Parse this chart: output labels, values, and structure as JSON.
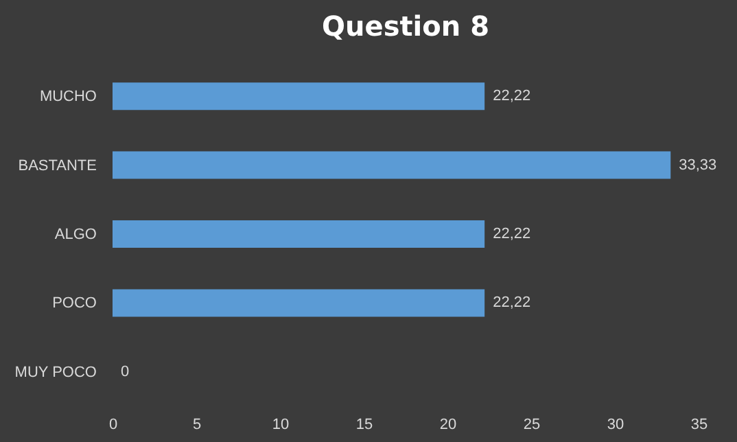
{
  "chart_data": {
    "type": "bar",
    "orientation": "horizontal",
    "title": "Question 8",
    "categories": [
      "MUCHO",
      "BASTANTE",
      "ALGO",
      "POCO",
      "MUY POCO"
    ],
    "values": [
      22.22,
      33.33,
      22.22,
      22.22,
      0
    ],
    "value_labels": [
      "22,22",
      "33,33",
      "22,22",
      "22,22",
      "0"
    ],
    "color": "#5b9bd5",
    "xlim": [
      0,
      35
    ],
    "xticks": [
      0,
      5,
      10,
      15,
      20,
      25,
      30,
      35
    ],
    "grid": false
  }
}
